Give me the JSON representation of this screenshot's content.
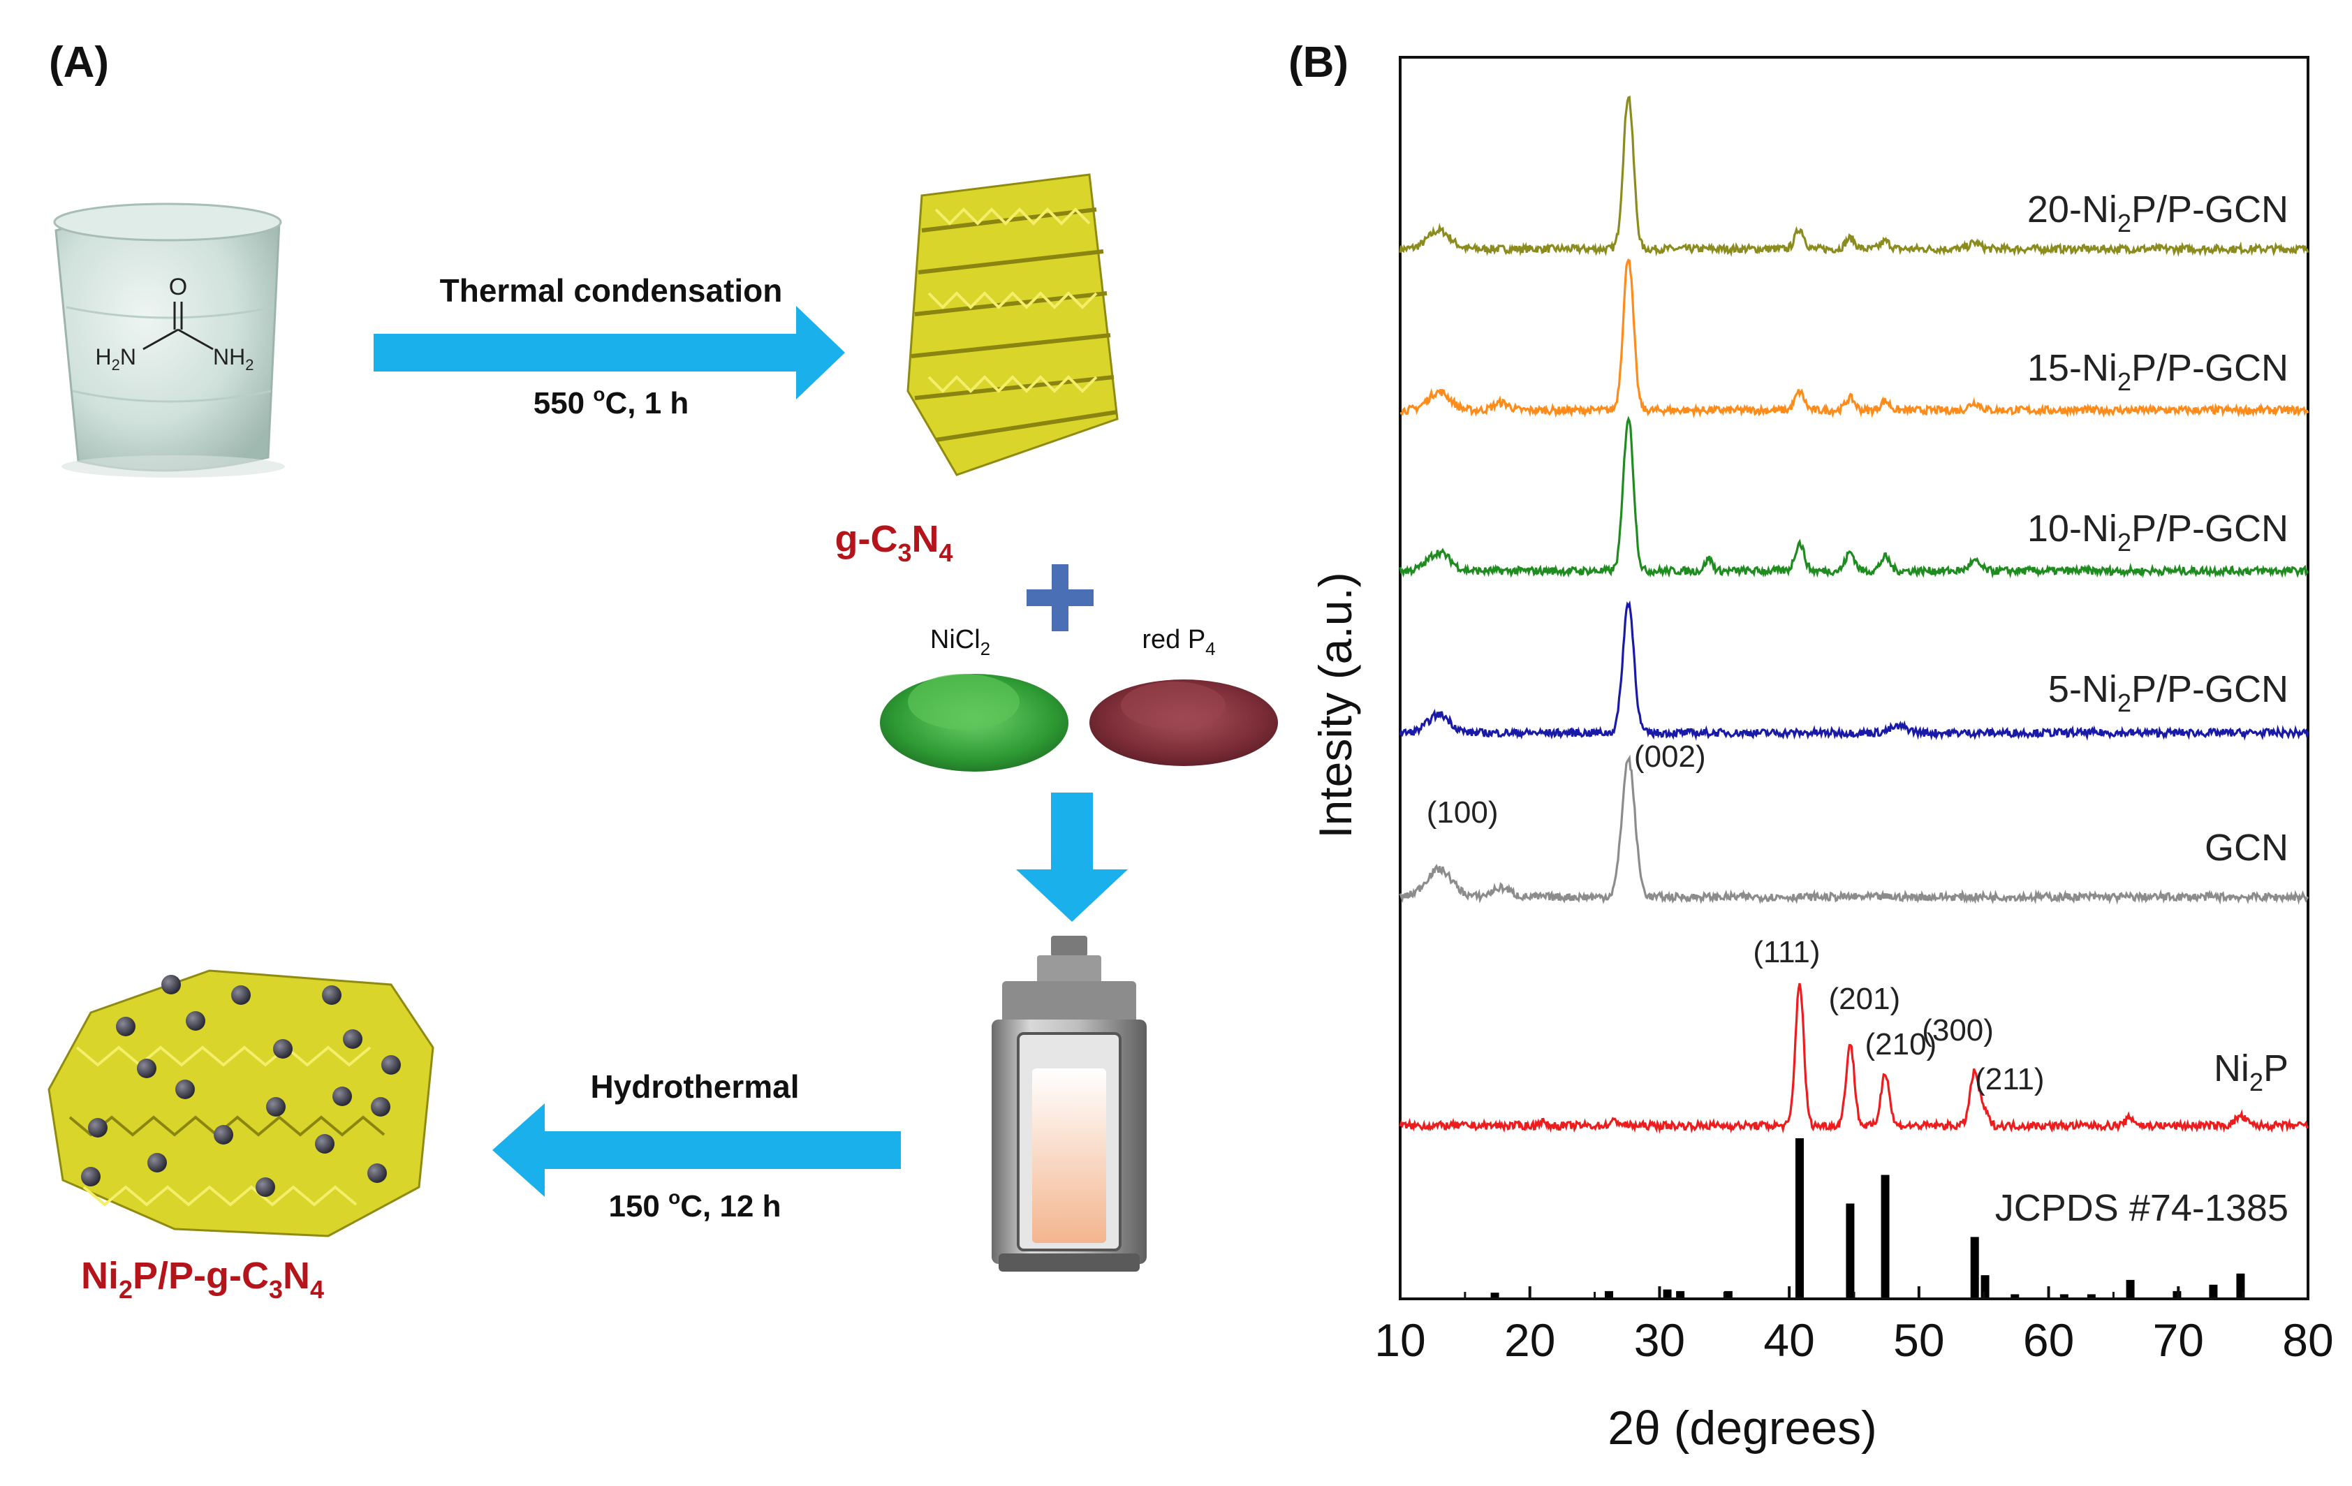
{
  "panel_a": {
    "label": "(A)",
    "urea_o": "O",
    "urea_left": "H2N",
    "urea_right": "NH2",
    "step1_label": "Thermal condensation",
    "step1_cond_pre": "550 ",
    "step1_cond_sup": "o",
    "step1_cond_post": "C, 1 h",
    "gcn_product": {
      "a": "g-C",
      "s1": "3",
      "b": "N",
      "s2": "4"
    },
    "plus": "+",
    "nicl2": {
      "a": "NiCl",
      "s": "2"
    },
    "redp": {
      "a": "red P",
      "s": "4"
    },
    "step2_label": "Hydrothermal",
    "step2_cond_pre": "150 ",
    "step2_cond_sup": "o",
    "step2_cond_post": "C, 12 h",
    "final_product": {
      "a": "Ni",
      "s1": "2",
      "b": "P/P-g-C",
      "s2": "3",
      "c": "N",
      "s3": "4"
    },
    "colors": {
      "arrow": "#1ab0ec",
      "product_text": "#b5141b",
      "plus": "#4a6fb5",
      "flake": "#d9d52a"
    }
  },
  "panel_b": {
    "label": "(B)",
    "ylabel": "Intesity (a.u.)",
    "xlabel": "2θ (degrees)",
    "ref_label": "JCPDS #74-1385",
    "hkl_labels": [
      {
        "text": "(100)",
        "x": 14.8,
        "trace": "GCN"
      },
      {
        "text": "(002)",
        "x": 30.8,
        "trace": "GCN"
      },
      {
        "text": "(111)",
        "x": 39.8,
        "trace": "Ni2P"
      },
      {
        "text": "(201)",
        "x": 45.8,
        "trace": "Ni2P"
      },
      {
        "text": "(210)",
        "x": 48.6,
        "trace": "Ni2P"
      },
      {
        "text": "(300)",
        "x": 53.0,
        "trace": "Ni2P"
      },
      {
        "text": "(211)",
        "x": 57.0,
        "trace": "Ni2P"
      }
    ]
  },
  "chart_data": {
    "type": "line",
    "xlabel": "2θ (degrees)",
    "ylabel": "Intesity (a.u.)",
    "xlim": [
      10,
      80
    ],
    "xticks": [
      10,
      20,
      30,
      40,
      50,
      60,
      70,
      80
    ],
    "grid": false,
    "series": [
      {
        "name": "20-Ni2P/P-GCN",
        "label_parts": [
          "20-Ni",
          "2",
          "P/P-GCN"
        ],
        "color": "#8b8b1e",
        "offset": 5.0,
        "base": 0.05,
        "peaks": [
          [
            13,
            0.12,
            1.2
          ],
          [
            27.6,
            1.0,
            0.55
          ],
          [
            40.8,
            0.13,
            0.5
          ],
          [
            44.7,
            0.07,
            0.5
          ],
          [
            47.4,
            0.05,
            0.5
          ],
          [
            54.3,
            0.04,
            0.6
          ]
        ]
      },
      {
        "name": "15-Ni2P/P-GCN",
        "label_parts": [
          "15-Ni",
          "2",
          "P/P-GCN"
        ],
        "color": "#ff8c1a",
        "offset": 4.0,
        "base": 0.05,
        "peaks": [
          [
            13,
            0.12,
            1.2
          ],
          [
            17.8,
            0.05,
            0.8
          ],
          [
            27.6,
            1.0,
            0.55
          ],
          [
            40.8,
            0.12,
            0.5
          ],
          [
            44.7,
            0.08,
            0.5
          ],
          [
            47.4,
            0.06,
            0.5
          ],
          [
            54.3,
            0.05,
            0.6
          ]
        ]
      },
      {
        "name": "10-Ni2P/P-GCN",
        "label_parts": [
          "10-Ni",
          "2",
          "P/P-GCN"
        ],
        "color": "#1e8c1e",
        "offset": 3.0,
        "base": 0.05,
        "peaks": [
          [
            13,
            0.12,
            1.2
          ],
          [
            27.6,
            1.0,
            0.55
          ],
          [
            33.8,
            0.08,
            0.4
          ],
          [
            40.8,
            0.18,
            0.5
          ],
          [
            44.7,
            0.12,
            0.5
          ],
          [
            47.4,
            0.09,
            0.5
          ],
          [
            54.3,
            0.06,
            0.6
          ]
        ]
      },
      {
        "name": "5-Ni2P/P-GCN",
        "label_parts": [
          "5-Ni",
          "2",
          "P/P-GCN"
        ],
        "color": "#1a1aa8",
        "offset": 2.0,
        "base": 0.05,
        "peaks": [
          [
            13,
            0.12,
            1.2
          ],
          [
            27.6,
            0.85,
            0.6
          ],
          [
            48.5,
            0.04,
            1.0
          ]
        ]
      },
      {
        "name": "GCN",
        "label_parts": [
          "GCN",
          "",
          ""
        ],
        "color": "#8c8c8c",
        "offset": 1.0,
        "base": 0.05,
        "peaks": [
          [
            13,
            0.18,
            1.4
          ],
          [
            17.8,
            0.06,
            1.0
          ],
          [
            27.6,
            0.9,
            0.7
          ]
        ]
      },
      {
        "name": "Ni2P",
        "label_parts": [
          "Ni",
          "2",
          "P"
        ],
        "color": "#ee1c1c",
        "offset": 0.0,
        "base": 0.0,
        "peaks": [
          [
            40.8,
            0.93,
            0.45
          ],
          [
            44.7,
            0.53,
            0.45
          ],
          [
            47.4,
            0.35,
            0.45
          ],
          [
            54.3,
            0.35,
            0.5
          ],
          [
            55.1,
            0.08,
            0.4
          ],
          [
            66.3,
            0.05,
            0.5
          ],
          [
            74.8,
            0.06,
            0.6
          ],
          [
            20.9,
            0.03,
            0.3
          ],
          [
            26.6,
            0.03,
            0.5
          ]
        ]
      }
    ],
    "reference_sticks": [
      [
        17.3,
        0.03
      ],
      [
        26.1,
        0.04
      ],
      [
        30.6,
        0.05
      ],
      [
        31.6,
        0.04
      ],
      [
        35.3,
        0.04
      ],
      [
        40.8,
        1.0
      ],
      [
        44.7,
        0.59
      ],
      [
        47.4,
        0.77
      ],
      [
        54.3,
        0.38
      ],
      [
        55.1,
        0.14
      ],
      [
        57.4,
        0.02
      ],
      [
        61.2,
        0.02
      ],
      [
        63.3,
        0.02
      ],
      [
        66.3,
        0.11
      ],
      [
        69.9,
        0.04
      ],
      [
        72.7,
        0.08
      ],
      [
        74.8,
        0.15
      ]
    ]
  }
}
